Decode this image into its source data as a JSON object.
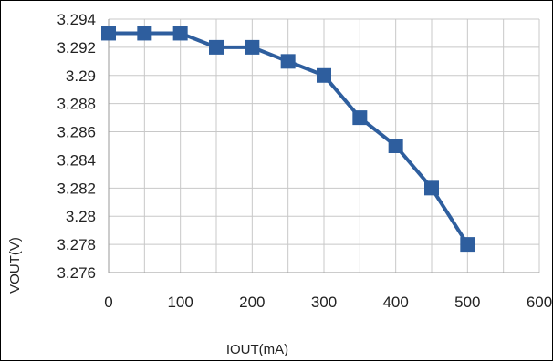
{
  "chart_data": {
    "type": "line",
    "title": "",
    "xlabel": "IOUT(mA)",
    "ylabel": "VOUT(V)",
    "xlim": [
      0,
      600
    ],
    "ylim": [
      3.276,
      3.294
    ],
    "x_ticks": [
      "0",
      "100",
      "200",
      "300",
      "400",
      "500",
      "600"
    ],
    "y_ticks": [
      "3.294",
      "3.292",
      "3.29",
      "3.288",
      "3.286",
      "3.284",
      "3.282",
      "3.28",
      "3.278",
      "3.276"
    ],
    "grid": true,
    "legend": "none",
    "series": [
      {
        "color": "#2e5e9e",
        "marker": "square",
        "x": [
          0,
          50,
          100,
          150,
          200,
          250,
          300,
          350,
          400,
          450,
          500
        ],
        "y": [
          3.293,
          3.293,
          3.293,
          3.292,
          3.292,
          3.291,
          3.29,
          3.287,
          3.285,
          3.282,
          3.278
        ]
      }
    ]
  }
}
